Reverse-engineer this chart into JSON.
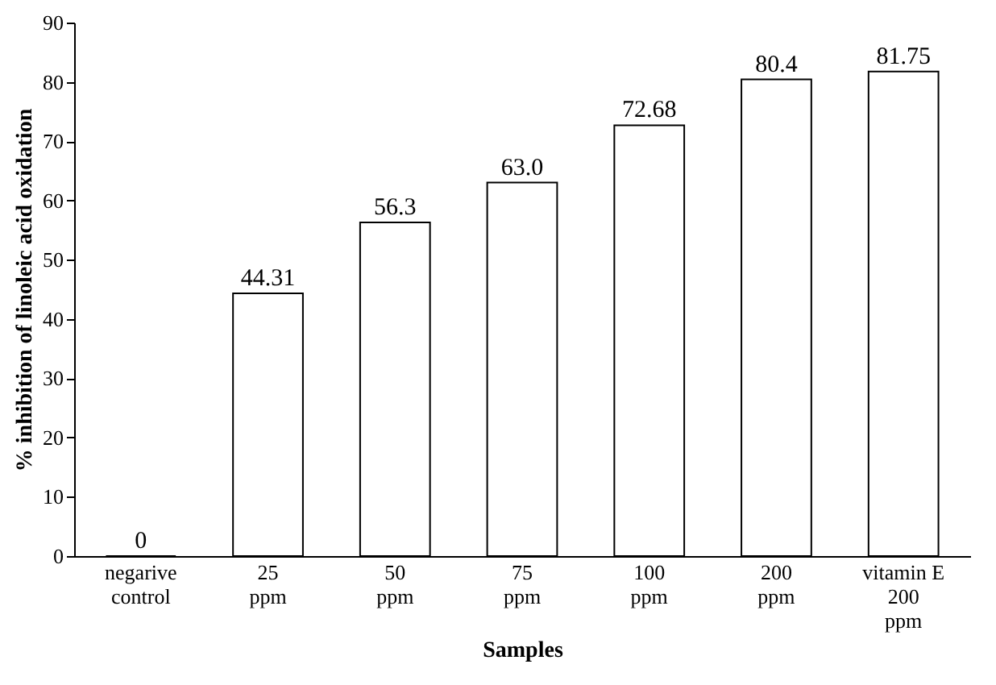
{
  "chart_data": {
    "type": "bar",
    "xlabel": "Samples",
    "ylabel": "% inhibition of linoleic acid oxidation",
    "categories": [
      "negarive\ncontrol",
      "25\nppm",
      "50\nppm",
      "75\nppm",
      "100\nppm",
      "200\nppm",
      "vitamin E\n200\nppm"
    ],
    "values": [
      0,
      44.31,
      56.3,
      63.0,
      72.68,
      80.4,
      81.75
    ],
    "value_labels": [
      "0",
      "44.31",
      "56.3",
      "63.0",
      "72.68",
      "80.4",
      "81.75"
    ],
    "color": "#ffffff",
    "ylim": [
      0,
      90
    ],
    "yticks": [
      0,
      10,
      20,
      30,
      40,
      50,
      60,
      70,
      80,
      90
    ],
    "grid": false
  }
}
